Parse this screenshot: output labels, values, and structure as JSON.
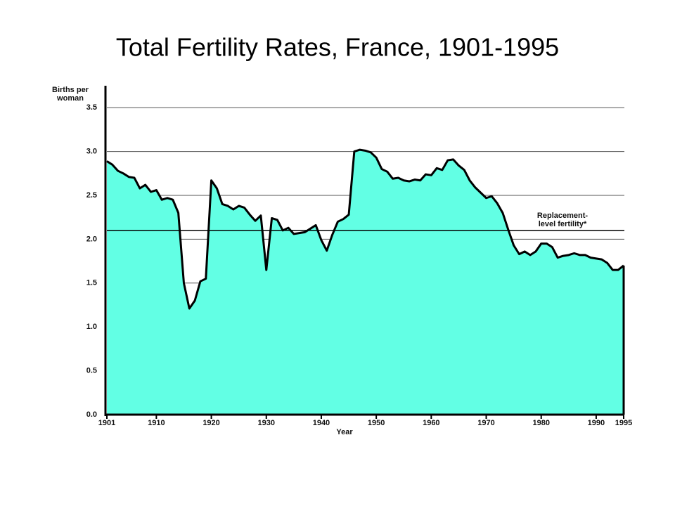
{
  "chart_data": {
    "type": "area",
    "title": "Total Fertility Rates, France, 1901-1995",
    "y_label": [
      "Births per",
      "woman"
    ],
    "x_label": "Year",
    "x": [
      1901,
      1902,
      1903,
      1904,
      1905,
      1906,
      1907,
      1908,
      1909,
      1910,
      1911,
      1912,
      1913,
      1914,
      1915,
      1916,
      1917,
      1918,
      1919,
      1920,
      1921,
      1922,
      1923,
      1924,
      1925,
      1926,
      1927,
      1928,
      1929,
      1930,
      1931,
      1932,
      1933,
      1934,
      1935,
      1936,
      1937,
      1938,
      1939,
      1940,
      1941,
      1942,
      1943,
      1944,
      1945,
      1946,
      1947,
      1948,
      1949,
      1950,
      1951,
      1952,
      1953,
      1954,
      1955,
      1956,
      1957,
      1958,
      1959,
      1960,
      1961,
      1962,
      1963,
      1964,
      1965,
      1966,
      1967,
      1968,
      1969,
      1970,
      1971,
      1972,
      1973,
      1974,
      1975,
      1976,
      1977,
      1978,
      1979,
      1980,
      1981,
      1982,
      1983,
      1984,
      1985,
      1986,
      1987,
      1988,
      1989,
      1990,
      1991,
      1992,
      1993,
      1994,
      1995
    ],
    "series": [
      {
        "name": "Total fertility rate",
        "color": "#62ffe4",
        "values": [
          2.89,
          2.85,
          2.78,
          2.75,
          2.71,
          2.7,
          2.58,
          2.62,
          2.54,
          2.56,
          2.45,
          2.47,
          2.45,
          2.3,
          1.5,
          1.21,
          1.3,
          1.52,
          1.55,
          2.67,
          2.58,
          2.4,
          2.38,
          2.34,
          2.38,
          2.36,
          2.28,
          2.21,
          2.27,
          1.65,
          2.24,
          2.22,
          2.1,
          2.13,
          2.06,
          2.07,
          2.08,
          2.12,
          2.16,
          1.99,
          1.87,
          2.05,
          2.2,
          2.23,
          2.28,
          3.0,
          3.02,
          3.01,
          2.99,
          2.93,
          2.8,
          2.77,
          2.69,
          2.7,
          2.67,
          2.66,
          2.68,
          2.67,
          2.74,
          2.73,
          2.81,
          2.79,
          2.9,
          2.91,
          2.84,
          2.79,
          2.67,
          2.59,
          2.53,
          2.47,
          2.49,
          2.41,
          2.3,
          2.11,
          1.93,
          1.83,
          1.86,
          1.82,
          1.86,
          1.95,
          1.95,
          1.91,
          1.79,
          1.81,
          1.82,
          1.84,
          1.82,
          1.82,
          1.79,
          1.78,
          1.77,
          1.73,
          1.65,
          1.65,
          1.7
        ]
      }
    ],
    "xlim": [
      1901,
      1995
    ],
    "xticks": [
      1901,
      1910,
      1920,
      1930,
      1940,
      1950,
      1960,
      1970,
      1980,
      1990,
      1995
    ],
    "ylim": [
      0,
      3.75
    ],
    "yticks": [
      {
        "value": 0,
        "label": "0.0"
      },
      {
        "value": 0.5,
        "label": "0.5"
      },
      {
        "value": 1,
        "label": "1.0"
      },
      {
        "value": 1.5,
        "label": "1.5"
      },
      {
        "value": 2,
        "label": "2.0"
      },
      {
        "value": 2.5,
        "label": "2.5"
      },
      {
        "value": 3,
        "label": "3.0"
      },
      {
        "value": 3.5,
        "label": "3.5"
      }
    ],
    "grid": true,
    "reference_line": {
      "value": 2.1,
      "label": [
        "Replacement-",
        "level fertility*"
      ]
    }
  }
}
